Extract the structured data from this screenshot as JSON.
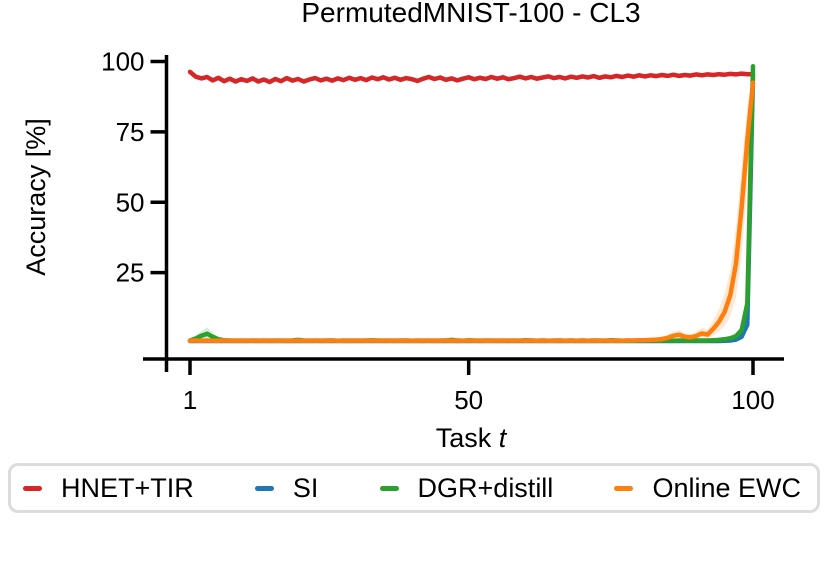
{
  "chart_data": {
    "type": "line",
    "title": "PermutedMNIST-100 - CL3",
    "xlabel": "Task t",
    "xlabel_text": "Task",
    "xlabel_variable": "t",
    "ylabel": "Accuracy [%]",
    "xlim": [
      1,
      100
    ],
    "ylim": [
      0,
      100
    ],
    "grid": false,
    "legend_position": "bottom",
    "x_start": 1,
    "x_step": 1,
    "xaxis": {
      "ticks": [
        1,
        50,
        100
      ]
    },
    "yaxis": {
      "ticks": [
        25,
        50,
        75,
        100
      ]
    },
    "series": [
      {
        "name": "HNET+TIR",
        "color": "#d62728",
        "band": {
          "halfwidth": 0.8
        },
        "values": [
          96.3,
          94.6,
          94.0,
          94.5,
          93.3,
          94.2,
          93.0,
          93.9,
          92.9,
          93.7,
          93.1,
          94.0,
          92.9,
          93.6,
          92.7,
          93.8,
          93.0,
          94.1,
          93.2,
          93.8,
          92.9,
          93.6,
          94.1,
          93.3,
          93.9,
          93.2,
          94.0,
          93.4,
          94.2,
          93.5,
          94.1,
          93.4,
          94.3,
          93.7,
          94.4,
          93.6,
          94.2,
          93.5,
          94.1,
          93.7,
          93.1,
          93.9,
          94.5,
          93.8,
          94.3,
          93.5,
          94.0,
          93.3,
          93.9,
          94.4,
          93.7,
          94.2,
          93.8,
          94.5,
          93.9,
          94.4,
          93.7,
          94.1,
          94.6,
          94.0,
          94.5,
          93.9,
          94.3,
          94.7,
          94.1,
          94.5,
          94.0,
          94.6,
          94.2,
          94.7,
          94.3,
          94.8,
          94.2,
          94.7,
          94.4,
          94.9,
          94.5,
          95.0,
          94.6,
          95.1,
          94.7,
          95.1,
          94.8,
          95.2,
          94.9,
          95.3,
          94.9,
          95.2,
          95.0,
          95.4,
          95.1,
          95.4,
          95.2,
          95.5,
          95.3,
          95.6,
          95.4,
          95.7,
          95.5,
          95.5
        ]
      },
      {
        "name": "SI",
        "color": "#1f77b4",
        "values": [
          0.7,
          0.7,
          0.7,
          0.7,
          0.7,
          0.7,
          0.7,
          0.7,
          0.7,
          0.7,
          0.7,
          0.7,
          0.7,
          0.7,
          0.7,
          0.7,
          0.7,
          0.7,
          0.7,
          0.7,
          0.7,
          0.7,
          0.7,
          0.7,
          0.7,
          0.7,
          0.7,
          0.7,
          0.7,
          0.7,
          0.7,
          0.7,
          0.7,
          0.7,
          0.7,
          0.7,
          0.7,
          0.7,
          0.7,
          0.7,
          0.7,
          0.7,
          0.7,
          0.7,
          0.7,
          0.7,
          0.7,
          0.7,
          0.7,
          0.7,
          0.7,
          0.7,
          0.7,
          0.7,
          0.7,
          0.7,
          0.7,
          0.7,
          0.7,
          0.7,
          0.7,
          0.7,
          0.7,
          0.7,
          0.7,
          0.7,
          0.7,
          0.7,
          0.7,
          0.7,
          0.7,
          0.7,
          0.7,
          0.7,
          0.7,
          0.7,
          0.7,
          0.7,
          0.7,
          0.7,
          0.7,
          0.7,
          0.7,
          0.7,
          0.7,
          0.7,
          0.7,
          0.7,
          0.7,
          0.7,
          0.7,
          0.7,
          0.7,
          0.7,
          0.8,
          0.9,
          1.2,
          2.2,
          6.5,
          95.2
        ]
      },
      {
        "name": "DGR+distill",
        "color": "#2ca02c",
        "band": {
          "regions": [
            [
              [
                2,
                0.8,
                2.6
              ],
              [
                3,
                1.2,
                4.2
              ],
              [
                4,
                1.6,
                5.6
              ],
              [
                5,
                1.0,
                3.8
              ],
              [
                6,
                0.7,
                2.2
              ],
              [
                7,
                0.6,
                1.4
              ]
            ],
            [
              [
                96,
                1.2,
                2.4
              ],
              [
                97,
                1.6,
                3.6
              ],
              [
                98,
                3.0,
                6.5
              ],
              [
                99,
                10.0,
                20.0
              ],
              [
                100,
                96.5,
                99.2
              ]
            ]
          ]
        },
        "values": [
          0.9,
          1.6,
          2.6,
          3.3,
          2.2,
          1.3,
          1.0,
          0.9,
          0.8,
          0.9,
          0.8,
          0.9,
          0.8,
          0.9,
          0.8,
          0.9,
          0.9,
          0.8,
          0.9,
          1.1,
          0.9,
          0.8,
          0.9,
          0.8,
          0.9,
          0.9,
          0.8,
          0.9,
          0.8,
          0.9,
          0.8,
          0.9,
          1.0,
          0.9,
          0.8,
          0.9,
          0.8,
          0.9,
          0.9,
          0.8,
          0.9,
          0.8,
          0.9,
          0.8,
          0.9,
          0.9,
          1.1,
          0.9,
          0.8,
          1.0,
          0.9,
          0.8,
          0.9,
          0.9,
          0.8,
          0.9,
          0.8,
          0.9,
          0.8,
          1.0,
          0.9,
          0.8,
          0.9,
          0.8,
          0.9,
          0.9,
          0.8,
          0.9,
          0.8,
          0.9,
          0.8,
          0.9,
          0.9,
          0.8,
          1.0,
          0.9,
          0.8,
          0.9,
          0.8,
          0.9,
          0.9,
          0.8,
          0.9,
          0.8,
          0.9,
          0.8,
          0.9,
          0.9,
          0.8,
          0.9,
          0.9,
          0.9,
          1.0,
          1.1,
          1.3,
          1.7,
          2.4,
          4.5,
          14.0,
          98.3
        ]
      },
      {
        "name": "Online EWC",
        "color": "#ff7f0e",
        "band": {
          "regions": [
            [
              [
                80,
                0.7,
                1.3
              ],
              [
                83,
                0.8,
                1.8
              ],
              [
                85,
                1.0,
                3.0
              ],
              [
                86,
                1.4,
                4.2
              ],
              [
                87,
                1.5,
                4.6
              ],
              [
                88,
                1.2,
                3.4
              ],
              [
                89,
                1.1,
                3.2
              ],
              [
                90,
                1.3,
                4.0
              ],
              [
                91,
                1.8,
                5.4
              ],
              [
                92,
                1.6,
                4.8
              ],
              [
                93,
                2.6,
                8.0
              ],
              [
                94,
                4.0,
                12.0
              ],
              [
                95,
                6.0,
                17.5
              ],
              [
                96,
                9.5,
                26.0
              ],
              [
                97,
                16.0,
                41.0
              ],
              [
                98,
                31.0,
                62.0
              ],
              [
                99,
                56.0,
                84.0
              ],
              [
                100,
                88.0,
                95.0
              ]
            ]
          ]
        },
        "values": [
          0.8,
          0.9,
          0.8,
          0.9,
          0.8,
          0.8,
          0.9,
          0.8,
          0.9,
          0.8,
          0.9,
          0.8,
          0.9,
          0.8,
          0.9,
          0.8,
          0.8,
          0.9,
          0.8,
          0.9,
          0.8,
          0.9,
          0.8,
          0.9,
          0.8,
          0.9,
          0.8,
          0.8,
          0.9,
          0.8,
          0.9,
          0.8,
          0.9,
          0.8,
          0.9,
          0.8,
          0.9,
          0.8,
          0.9,
          0.8,
          0.8,
          0.9,
          0.8,
          0.9,
          0.8,
          0.9,
          0.8,
          0.9,
          0.8,
          0.9,
          0.8,
          0.9,
          0.8,
          0.8,
          0.9,
          0.8,
          0.9,
          0.8,
          0.9,
          0.8,
          0.9,
          0.8,
          0.9,
          0.8,
          0.8,
          0.9,
          0.8,
          0.9,
          0.8,
          0.9,
          0.8,
          0.9,
          0.8,
          0.9,
          0.8,
          0.9,
          0.8,
          0.9,
          0.9,
          1.0,
          1.0,
          1.1,
          1.2,
          1.4,
          1.8,
          2.6,
          2.9,
          2.2,
          2.0,
          2.5,
          3.4,
          3.0,
          5.0,
          7.5,
          11.0,
          17.0,
          28.0,
          48.0,
          72.0,
          92.5
        ]
      }
    ]
  }
}
